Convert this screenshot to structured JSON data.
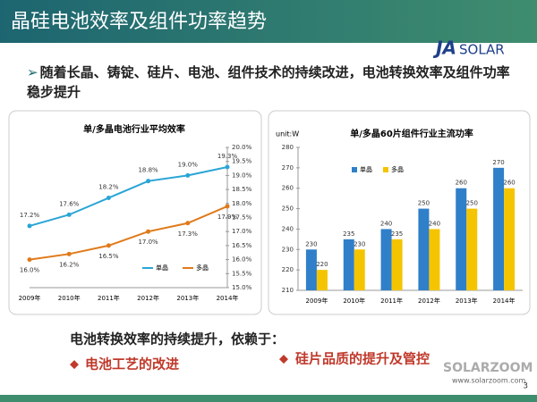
{
  "title": "晶硅电池效率及组件功率趋势",
  "logo": {
    "brand": "JA",
    "suffix": "SOLAR"
  },
  "intro": "随着长晶、铸锭、硅片、电池、组件技术的持续改进，电池转换效率及组件功率稳步提升",
  "chart_data": [
    {
      "type": "line",
      "title": "单/多晶电池行业平均效率",
      "categories": [
        "2009年",
        "2010年",
        "2011年",
        "2012年",
        "2013年",
        "2014年"
      ],
      "series": [
        {
          "name": "单晶",
          "color": "#2aa5d6",
          "values": [
            17.2,
            17.6,
            18.2,
            18.8,
            19.0,
            19.3
          ],
          "value_labels": [
            "17.2%",
            "17.6%",
            "18.2%",
            "18.8%",
            "19.0%",
            "19.3%"
          ]
        },
        {
          "name": "多晶",
          "color": "#e07a1a",
          "values": [
            16.0,
            16.2,
            16.5,
            17.0,
            17.3,
            17.9
          ],
          "value_labels": [
            "16.0%",
            "16.2%",
            "16.5%",
            "17.0%",
            "17.3%",
            "17.9%"
          ]
        }
      ],
      "ylim": [
        15,
        20
      ],
      "yticks": [
        {
          "value": 15,
          "label": "15.0%"
        },
        {
          "value": 15.5,
          "label": "15.5%"
        },
        {
          "value": 16,
          "label": "16.0%"
        },
        {
          "value": 16.5,
          "label": "16.5%"
        },
        {
          "value": 17,
          "label": "17.0%"
        },
        {
          "value": 17.5,
          "label": "17.5%"
        },
        {
          "value": 18,
          "label": "18.0%"
        },
        {
          "value": 18.5,
          "label": "18.5%"
        },
        {
          "value": 19,
          "label": "19.0%"
        },
        {
          "value": 19.5,
          "label": "19.5%"
        },
        {
          "value": 20,
          "label": "20.0%"
        }
      ],
      "y_axis_side": "right",
      "legend": "bottom-right",
      "grid": false
    },
    {
      "type": "bar",
      "title": "单/多晶60片组件行业主流功率",
      "y_label": "unit:W",
      "categories": [
        "2009年",
        "2010年",
        "2011年",
        "2012年",
        "2013年",
        "2014年"
      ],
      "series": [
        {
          "name": "单晶",
          "color": "#2f7fc9",
          "values": [
            230,
            235,
            240,
            250,
            260,
            270
          ]
        },
        {
          "name": "多晶",
          "color": "#f5c400",
          "values": [
            220,
            230,
            235,
            240,
            250,
            260
          ]
        }
      ],
      "ylim": [
        210,
        280
      ],
      "yticks": [
        210,
        220,
        230,
        240,
        250,
        260,
        270,
        280
      ],
      "y_axis_side": "left",
      "legend": "top-left",
      "grid": false
    }
  ],
  "conclusion": "电池转换效率的持续提升，依赖于：",
  "points": [
    "电池工艺的改进",
    "硅片品质的提升及管控"
  ],
  "watermark": {
    "brand": "SOLARZOOM",
    "url": "www.solarzoom.com"
  },
  "page_number": "3"
}
